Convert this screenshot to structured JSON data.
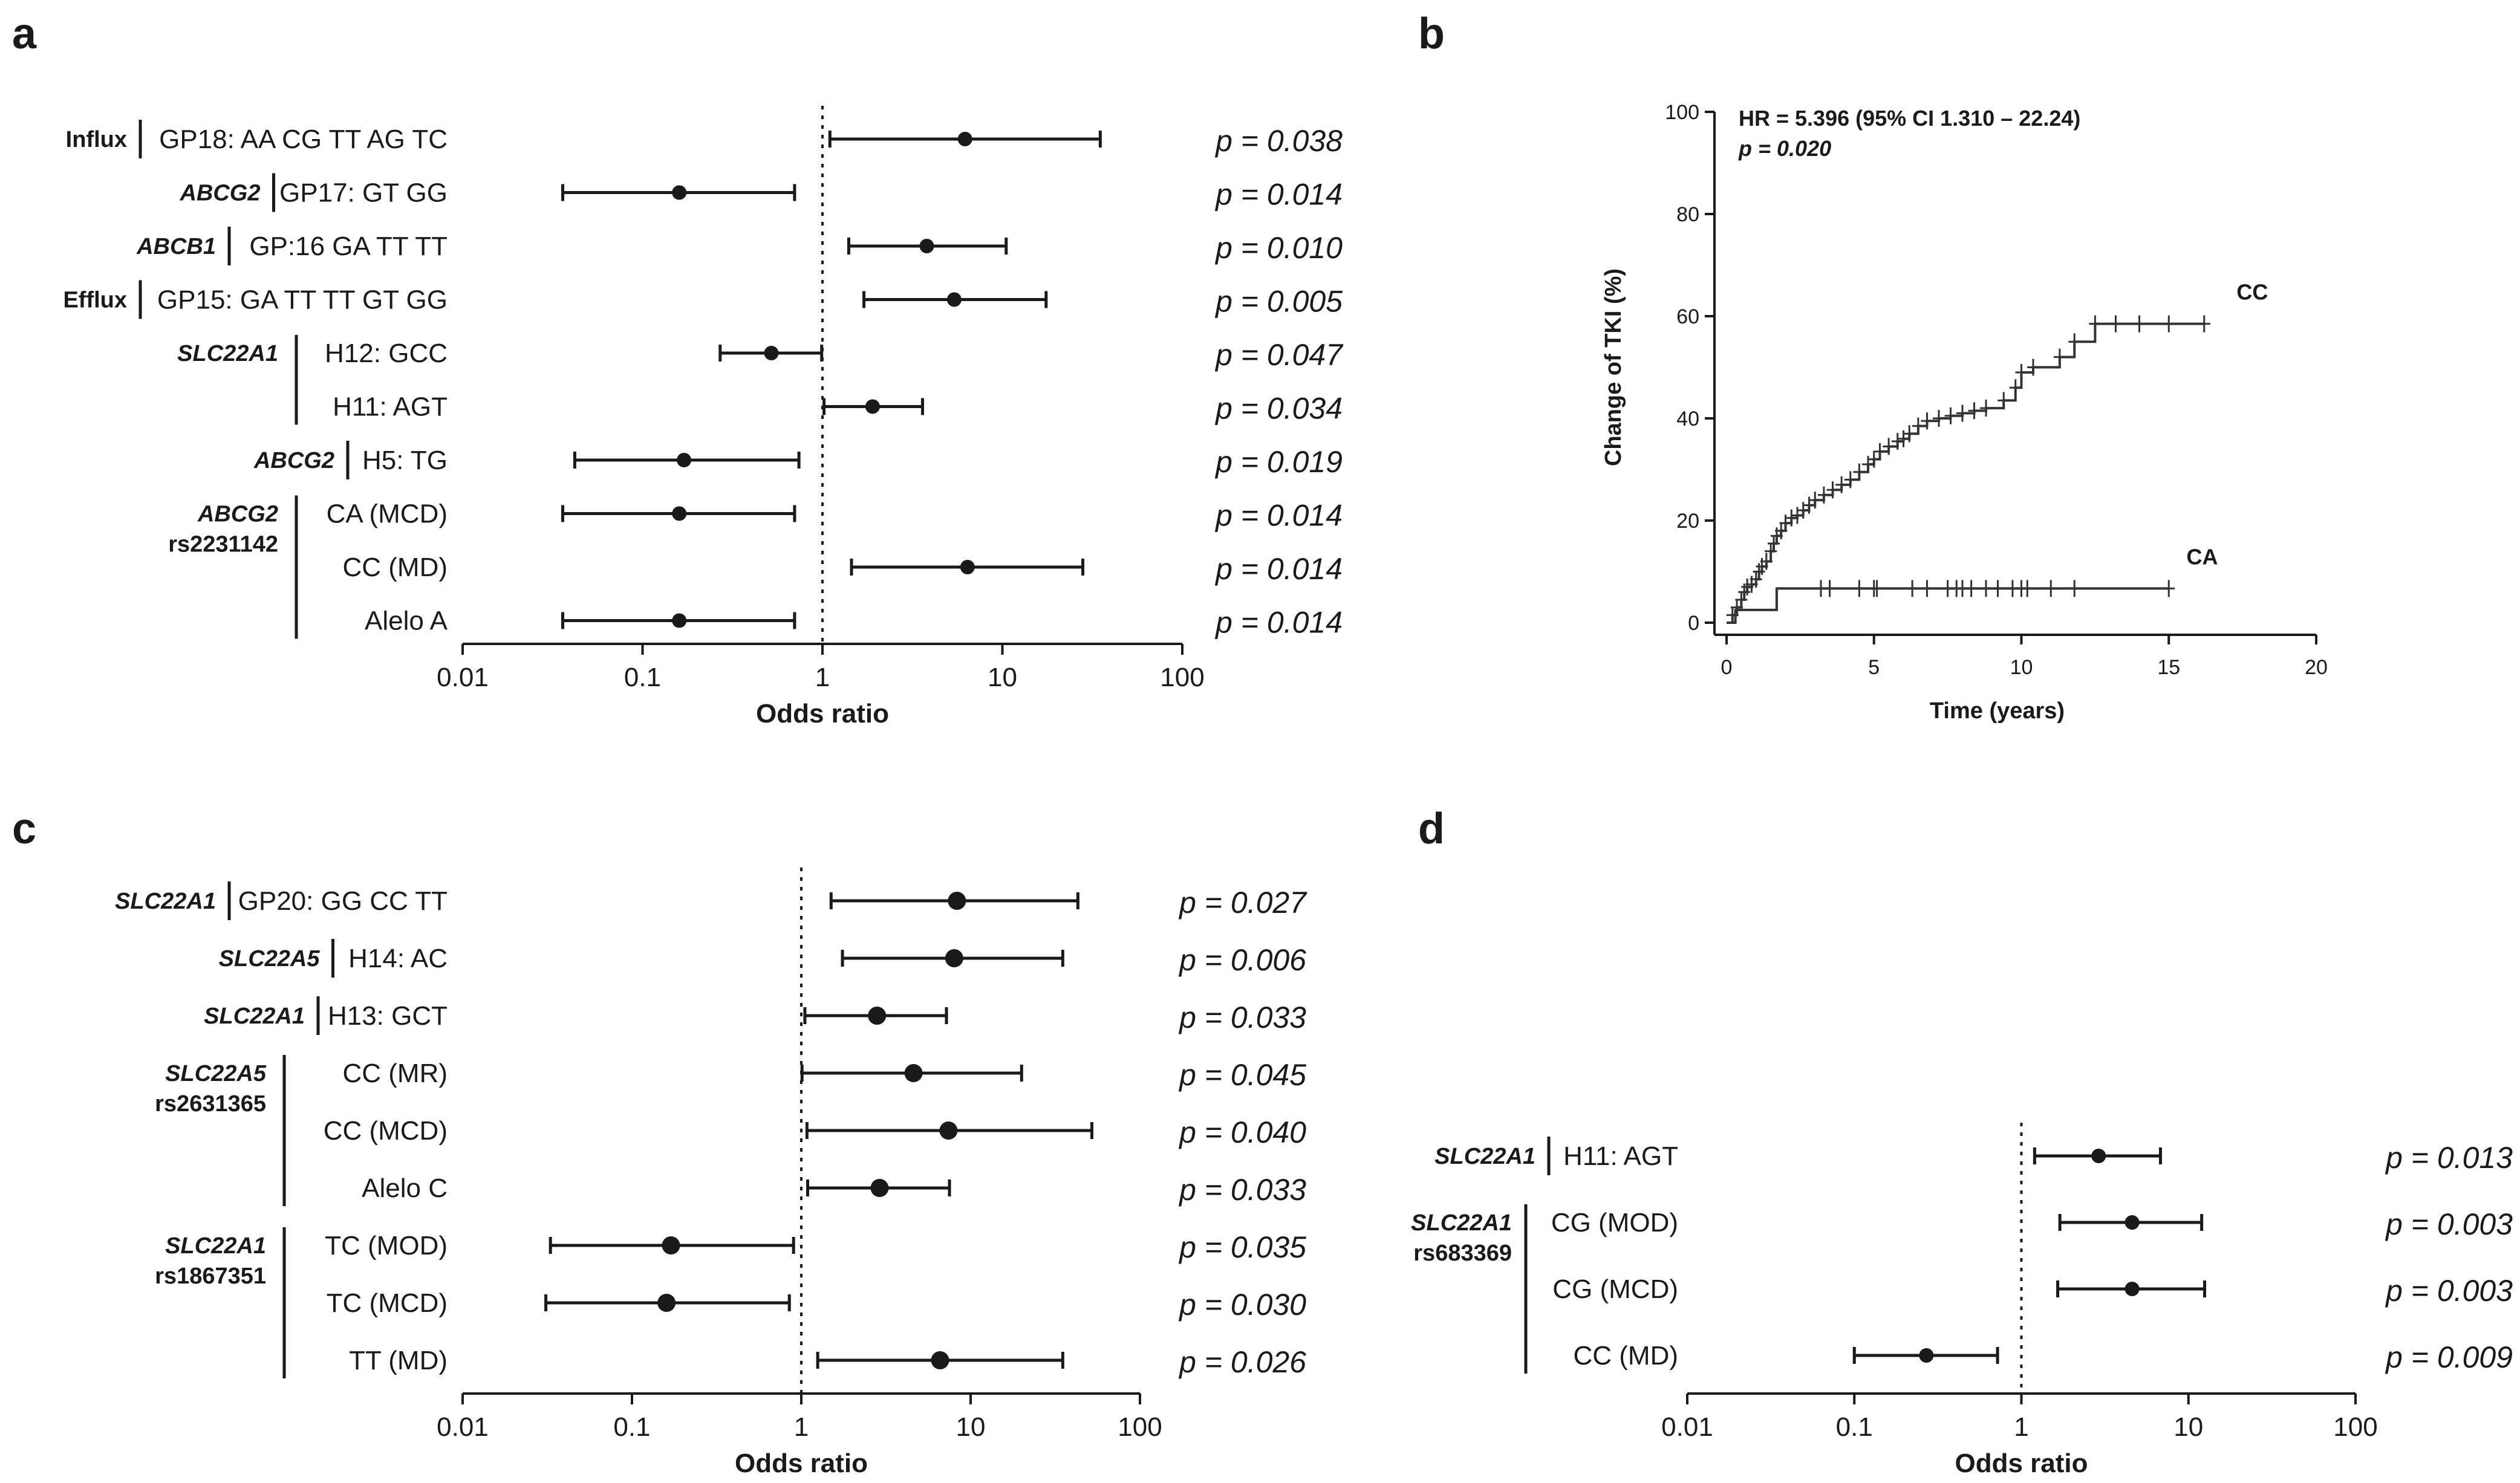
{
  "figure": {
    "panel_letters": [
      "a",
      "b",
      "c",
      "d"
    ]
  },
  "chart_data": [
    {
      "panel": "a",
      "type": "forest",
      "xlabel": "Odds ratio",
      "xscale": "log",
      "xlim": [
        0.01,
        100
      ],
      "xticks": [
        "0.01",
        "0.1",
        "1",
        "10",
        "100"
      ],
      "reference_line": 1,
      "rows": [
        {
          "label": "GP18: AA CG TT AG TC",
          "or": 6.2,
          "ci": [
            1.1,
            35
          ],
          "p": "p = 0.038"
        },
        {
          "label": "GP17: GT GG",
          "or": 0.16,
          "ci": [
            0.036,
            0.7
          ],
          "p": "p = 0.014"
        },
        {
          "label": "GP:16 GA TT TT",
          "or": 3.8,
          "ci": [
            1.4,
            10.5
          ],
          "p": "p = 0.010"
        },
        {
          "label": "GP15: GA TT TT GT GG",
          "or": 5.4,
          "ci": [
            1.7,
            17.5
          ],
          "p": "p = 0.005"
        },
        {
          "label": "H12: GCC",
          "or": 0.52,
          "ci": [
            0.27,
            0.99
          ],
          "p": "p = 0.047"
        },
        {
          "label": "H11: AGT",
          "or": 1.9,
          "ci": [
            1.02,
            3.6
          ],
          "p": "p = 0.034"
        },
        {
          "label": "H5: TG",
          "or": 0.17,
          "ci": [
            0.042,
            0.74
          ],
          "p": "p = 0.019"
        },
        {
          "label": "CA (MCD)",
          "or": 0.16,
          "ci": [
            0.036,
            0.7
          ],
          "p": "p = 0.014"
        },
        {
          "label": "CC (MD)",
          "or": 6.4,
          "ci": [
            1.45,
            28
          ],
          "p": "p = 0.014"
        },
        {
          "label": "Alelo A",
          "or": 0.16,
          "ci": [
            0.036,
            0.7
          ],
          "p": "p = 0.014"
        }
      ],
      "groups": [
        {
          "lines": [
            "Influx"
          ],
          "italic": false,
          "rows": [
            0,
            0
          ]
        },
        {
          "lines": [
            "ABCG2"
          ],
          "italic": true,
          "rows": [
            1,
            1
          ]
        },
        {
          "lines": [
            "ABCB1"
          ],
          "italic": true,
          "rows": [
            2,
            2
          ]
        },
        {
          "lines": [
            "Efflux"
          ],
          "italic": false,
          "rows": [
            3,
            3
          ]
        },
        {
          "lines": [
            "SLC22A1"
          ],
          "italic": true,
          "rows": [
            4,
            5
          ]
        },
        {
          "lines": [
            "ABCG2"
          ],
          "italic": true,
          "rows": [
            6,
            6
          ]
        },
        {
          "lines": [
            "ABCG2",
            "rs2231142"
          ],
          "italic": true,
          "rows": [
            7,
            9
          ]
        }
      ]
    },
    {
      "panel": "b",
      "type": "line",
      "subtype": "kaplan-meier",
      "xlabel": "Time (years)",
      "ylabel": "Change of TKI (%)",
      "xlim": [
        0,
        20
      ],
      "ylim": [
        0,
        100
      ],
      "xticks": [
        "0",
        "5",
        "10",
        "15",
        "20"
      ],
      "yticks": [
        "0",
        "20",
        "40",
        "60",
        "80",
        "100"
      ],
      "annotation": {
        "hr": "HR = 5.396  (95% CI 1.310 – 22.24)",
        "p": "p = 0.020"
      },
      "series": [
        {
          "name": "CC",
          "x": [
            0,
            0.2,
            0.35,
            0.5,
            0.6,
            0.7,
            0.85,
            1.0,
            1.1,
            1.2,
            1.35,
            1.5,
            1.6,
            1.7,
            1.85,
            2.0,
            2.2,
            2.4,
            2.6,
            2.8,
            3.0,
            3.3,
            3.6,
            3.9,
            4.2,
            4.5,
            4.8,
            5.0,
            5.2,
            5.5,
            5.8,
            6.0,
            6.2,
            6.5,
            6.8,
            7.2,
            7.6,
            8.0,
            8.4,
            8.8,
            9.4,
            9.8,
            10.0,
            10.4,
            11.3,
            11.8,
            12.5,
            13.2,
            14.0,
            15.0,
            16.2
          ],
          "y": [
            0,
            1.5,
            3,
            4.5,
            6,
            7,
            7.5,
            8.5,
            10,
            11,
            12,
            14,
            15.5,
            17,
            18,
            19.5,
            20.5,
            21,
            22,
            23,
            24,
            25,
            26,
            27,
            28,
            29.5,
            31,
            32,
            33.5,
            34.5,
            35.5,
            36,
            37,
            38.5,
            39.5,
            40,
            40.5,
            41,
            41.5,
            42,
            43.5,
            46,
            49,
            50,
            52,
            55,
            58.5,
            58.5,
            58.5,
            58.5,
            58.5
          ]
        },
        {
          "name": "CA",
          "x": [
            0,
            0.3,
            1.3,
            1.7,
            15
          ],
          "y": [
            0,
            2.5,
            2.5,
            6.7,
            6.7
          ],
          "censor_x": [
            3.2,
            3.5,
            4.5,
            5.0,
            5.1,
            6.3,
            6.8,
            7.5,
            7.8,
            8.0,
            8.3,
            8.8,
            9.2,
            9.7,
            10.0,
            10.2,
            11.0,
            11.8,
            15.0
          ]
        }
      ]
    },
    {
      "panel": "c",
      "type": "forest",
      "xlabel": "Odds ratio",
      "xscale": "log",
      "xlim": [
        0.01,
        100
      ],
      "xticks": [
        "0.01",
        "0.1",
        "1",
        "10",
        "100"
      ],
      "reference_line": 1,
      "rows": [
        {
          "label": "GP20: GG CC TT",
          "or": 8.3,
          "ci": [
            1.5,
            43
          ],
          "p": "p = 0.027"
        },
        {
          "label": "H14: AC",
          "or": 8.0,
          "ci": [
            1.75,
            35
          ],
          "p": "p = 0.006"
        },
        {
          "label": "H13: GCT",
          "or": 2.8,
          "ci": [
            1.05,
            7.2
          ],
          "p": "p = 0.033"
        },
        {
          "label": "CC (MR)",
          "or": 4.6,
          "ci": [
            1.01,
            20
          ],
          "p": "p = 0.045"
        },
        {
          "label": "CC (MCD)",
          "or": 7.4,
          "ci": [
            1.08,
            52
          ],
          "p": "p = 0.040"
        },
        {
          "label": "Alelo C",
          "or": 2.9,
          "ci": [
            1.09,
            7.5
          ],
          "p": "p = 0.033"
        },
        {
          "label": "TC (MOD)",
          "or": 0.17,
          "ci": [
            0.033,
            0.9
          ],
          "p": "p = 0.035"
        },
        {
          "label": "TC (MCD)",
          "or": 0.16,
          "ci": [
            0.031,
            0.85
          ],
          "p": "p = 0.030"
        },
        {
          "label": "TT (MD)",
          "or": 6.6,
          "ci": [
            1.25,
            35
          ],
          "p": "p = 0.026"
        }
      ],
      "groups": [
        {
          "lines": [
            "SLC22A1"
          ],
          "italic": true,
          "rows": [
            0,
            0
          ]
        },
        {
          "lines": [
            "SLC22A5"
          ],
          "italic": true,
          "rows": [
            1,
            1
          ]
        },
        {
          "lines": [
            "SLC22A1"
          ],
          "italic": true,
          "rows": [
            2,
            2
          ]
        },
        {
          "lines": [
            "SLC22A5",
            "rs2631365"
          ],
          "italic": true,
          "rows": [
            3,
            5
          ]
        },
        {
          "lines": [
            "SLC22A1",
            "rs1867351"
          ],
          "italic": true,
          "rows": [
            6,
            8
          ]
        }
      ]
    },
    {
      "panel": "d",
      "type": "forest",
      "xlabel": "Odds ratio",
      "xscale": "log",
      "xlim": [
        0.01,
        100
      ],
      "xticks": [
        "0.01",
        "0.1",
        "1",
        "10",
        "100"
      ],
      "reference_line": 1,
      "rows": [
        {
          "label": "H11: AGT",
          "or": 2.9,
          "ci": [
            1.2,
            6.8
          ],
          "p": "p = 0.013"
        },
        {
          "label": "CG (MOD)",
          "or": 4.6,
          "ci": [
            1.7,
            12
          ],
          "p": "p = 0.003"
        },
        {
          "label": "CG (MCD)",
          "or": 4.6,
          "ci": [
            1.65,
            12.5
          ],
          "p": "p = 0.003"
        },
        {
          "label": "CC (MD)",
          "or": 0.27,
          "ci": [
            0.1,
            0.72
          ],
          "p": "p = 0.009"
        }
      ],
      "groups": [
        {
          "lines": [
            "SLC22A1"
          ],
          "italic": true,
          "rows": [
            0,
            0
          ]
        },
        {
          "lines": [
            "SLC22A1",
            "rs683369"
          ],
          "italic": true,
          "rows": [
            1,
            3
          ]
        }
      ]
    }
  ]
}
